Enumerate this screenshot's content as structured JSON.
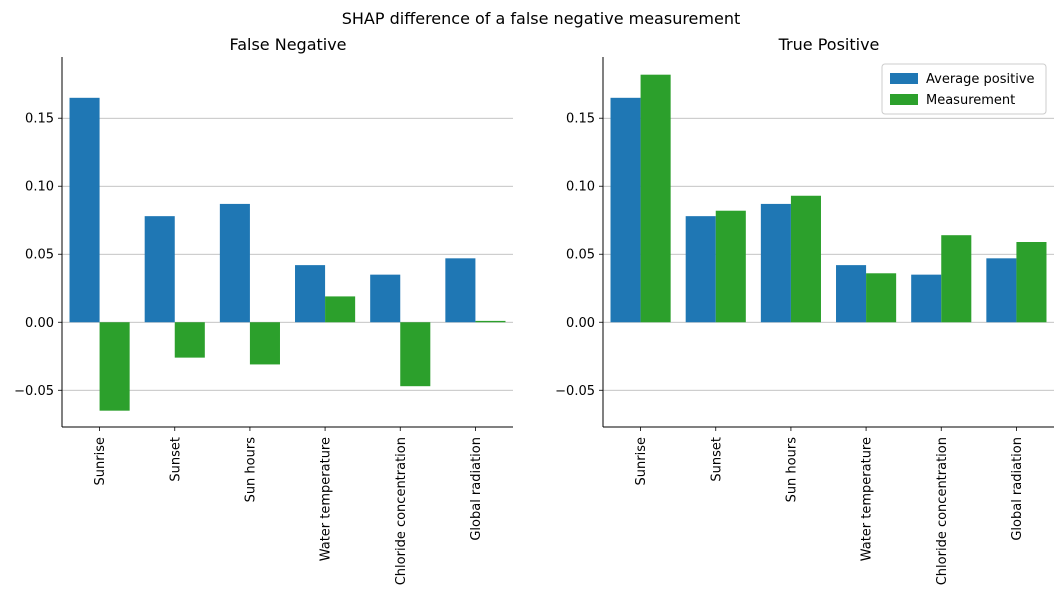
{
  "suptitle": "SHAP difference of a false negative measurement",
  "colors": {
    "average_positive": "#1f77b4",
    "measurement": "#2ca02c",
    "grid": "#b0b0b0",
    "axis": "#000000"
  },
  "chart_data": [
    {
      "type": "bar",
      "title": "False Negative",
      "categories": [
        "Sunrise",
        "Sunset",
        "Sun hours",
        "Water temperature",
        "Chloride concentration",
        "Global radiation"
      ],
      "series": [
        {
          "name": "Average positive",
          "values": [
            0.165,
            0.078,
            0.087,
            0.042,
            0.035,
            0.047
          ]
        },
        {
          "name": "Measurement",
          "values": [
            -0.065,
            -0.026,
            -0.031,
            0.019,
            -0.047,
            0.001
          ]
        }
      ],
      "yticks": [
        -0.05,
        0.0,
        0.05,
        0.1,
        0.15
      ],
      "ytick_labels": [
        "−0.05",
        "0.00",
        "0.05",
        "0.10",
        "0.15"
      ],
      "ylim": [
        -0.077,
        0.195
      ],
      "xlabel": "",
      "ylabel": "",
      "grid": "y",
      "legend": null
    },
    {
      "type": "bar",
      "title": "True Positive",
      "categories": [
        "Sunrise",
        "Sunset",
        "Sun hours",
        "Water temperature",
        "Chloride concentration",
        "Global radiation"
      ],
      "series": [
        {
          "name": "Average positive",
          "values": [
            0.165,
            0.078,
            0.087,
            0.042,
            0.035,
            0.047
          ]
        },
        {
          "name": "Measurement",
          "values": [
            0.182,
            0.082,
            0.093,
            0.036,
            0.064,
            0.059
          ]
        }
      ],
      "yticks": [
        -0.05,
        0.0,
        0.05,
        0.1,
        0.15
      ],
      "ytick_labels": [
        "−0.05",
        "0.00",
        "0.05",
        "0.10",
        "0.15"
      ],
      "ylim": [
        -0.077,
        0.195
      ],
      "xlabel": "",
      "ylabel": "",
      "grid": "y",
      "legend": "top-right",
      "legend_entries": [
        "Average positive",
        "Measurement"
      ]
    }
  ]
}
